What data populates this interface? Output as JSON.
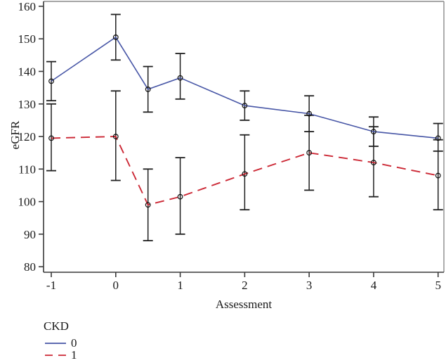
{
  "chart_data": {
    "type": "line",
    "title": "",
    "xlabel": "Assessment",
    "ylabel": "eGFR",
    "grid": false,
    "x_ticks": [
      -1,
      0,
      1,
      2,
      3,
      4,
      5
    ],
    "y_ticks": [
      80,
      90,
      100,
      110,
      120,
      130,
      140,
      150,
      160
    ],
    "x_range": [
      -1.12,
      5.09
    ],
    "y_range": [
      78.3,
      161.5
    ],
    "legend": {
      "title": "CKD",
      "position": "bottom-left",
      "entries": [
        {
          "label": "0",
          "color": "#4756a6",
          "dash": "solid"
        },
        {
          "label": "1",
          "color": "#cc2936",
          "dash": "dashed"
        }
      ]
    },
    "series": [
      {
        "name": "CKD 0",
        "color": "#4756a6",
        "style": "solid",
        "x": [
          -1,
          0,
          0.5,
          1,
          2,
          3,
          4,
          5
        ],
        "y": [
          137,
          150.5,
          134.5,
          138,
          129.5,
          127,
          121.5,
          119.5
        ],
        "err_low": [
          131,
          143.5,
          127.5,
          131.5,
          125,
          121.5,
          117,
          115.5
        ],
        "err_high": [
          143,
          157.5,
          141.5,
          145.5,
          134,
          132.5,
          126,
          124
        ]
      },
      {
        "name": "CKD 1",
        "color": "#cc2936",
        "style": "dashed",
        "x": [
          -1,
          0,
          0.5,
          1,
          2,
          3,
          4,
          5
        ],
        "y": [
          119.5,
          120,
          99,
          101.5,
          108.5,
          115,
          112,
          108
        ],
        "err_low": [
          109.5,
          106.5,
          88,
          90,
          97.5,
          103.5,
          101.5,
          97.5
        ],
        "err_high": [
          130,
          134,
          110,
          113.5,
          120.5,
          126.5,
          123,
          119
        ]
      }
    ],
    "colors": {
      "axis": "#3a3a3a",
      "frame": "#8a8a8a",
      "error_bar": "#1f1f1f",
      "marker": "#111111",
      "background": "#ffffff",
      "tick_text": "#1a1a1a"
    }
  }
}
